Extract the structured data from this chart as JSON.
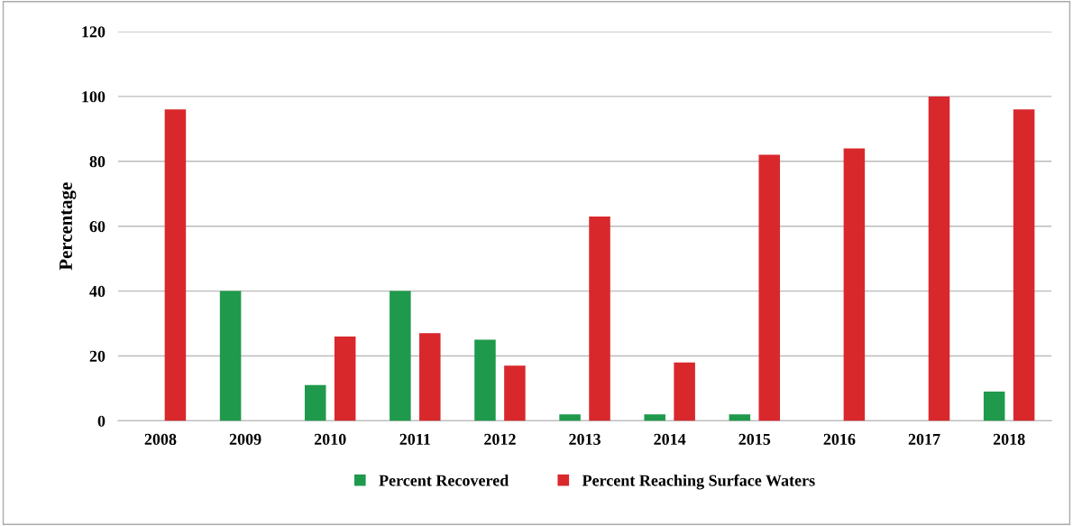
{
  "chart_data": {
    "type": "bar",
    "ylabel": "Percentage",
    "categories": [
      "2008",
      "2009",
      "2010",
      "2011",
      "2012",
      "2013",
      "2014",
      "2015",
      "2016",
      "2017",
      "2018"
    ],
    "series": [
      {
        "name": "Percent Recovered",
        "color": "#1f9a4c",
        "values": [
          0,
          40,
          11,
          40,
          25,
          2,
          2,
          2,
          0,
          0,
          9
        ]
      },
      {
        "name": "Percent Reaching Surface Waters",
        "color": "#d9282c",
        "values": [
          96,
          0,
          26,
          27,
          17,
          63,
          18,
          82,
          84,
          100,
          96
        ]
      }
    ],
    "ylim": [
      0,
      120
    ],
    "yticks": [
      0,
      20,
      40,
      60,
      80,
      100,
      120
    ],
    "grid": "y",
    "legend": "bottom"
  }
}
